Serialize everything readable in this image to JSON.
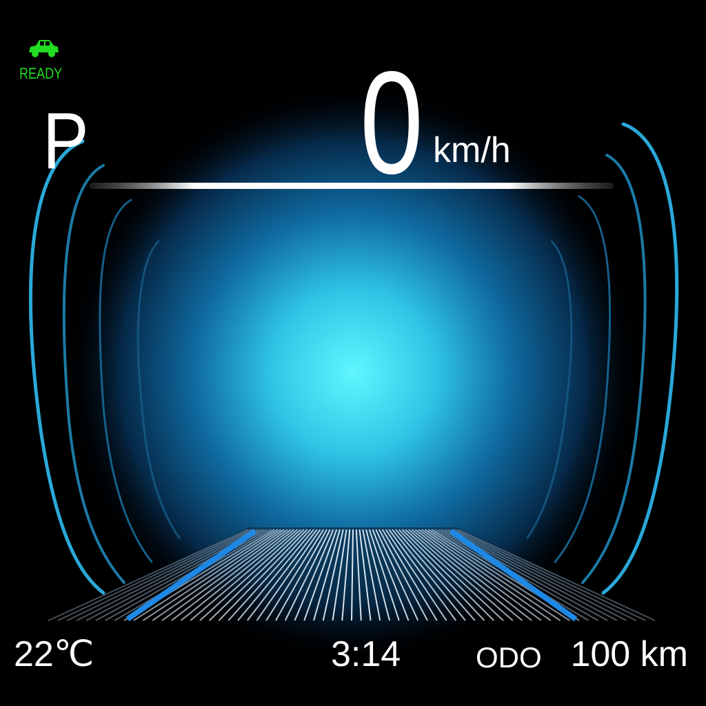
{
  "status": {
    "ready_label": "READY",
    "ready_color": "#22dd22",
    "ready_icon": "car-icon"
  },
  "drive": {
    "gear": "P",
    "speed": "0",
    "speed_unit": "km/h"
  },
  "footer": {
    "temperature": "22℃",
    "time": "3:14",
    "odo_label": "ODO",
    "odo_value": "100 km"
  },
  "theme": {
    "background": "#000000",
    "glow": "#4ff0ff",
    "arc_color": "#2aa8d8",
    "road_stripe": "#1e88e5"
  }
}
